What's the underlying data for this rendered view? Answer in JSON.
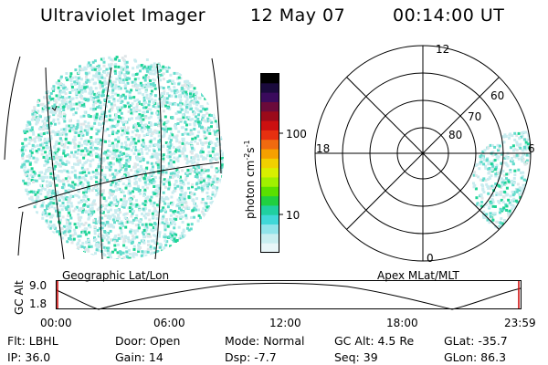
{
  "header": {
    "instrument": "Ultraviolet Imager",
    "date": "12 May 07",
    "time": "00:14:00 UT"
  },
  "colors": {
    "accent_red": "#cc0000",
    "speckle_low": "#c8ecef",
    "speckle_mid": "#63dccc",
    "speckle_high": "#1fd496"
  },
  "colorbar": {
    "units": "photon cm-2s-1",
    "ticks": [
      "100",
      "10"
    ],
    "colors": [
      "#000000",
      "#1a0a3c",
      "#3a0a5c",
      "#6b0a3a",
      "#9b0a1a",
      "#cc1010",
      "#e63010",
      "#f06a10",
      "#f5a000",
      "#f0d000",
      "#d8f000",
      "#a0f000",
      "#5ae000",
      "#20d040",
      "#20d0a0",
      "#40d8d8",
      "#90e4ea",
      "#c8eef0",
      "#e8f6f8"
    ]
  },
  "left_panel": {
    "caption": "Geographic Lat/Lon"
  },
  "polar_panel": {
    "caption": "Apex MLat/MLT",
    "mlt_labels": [
      "12",
      "18",
      "6",
      "0"
    ],
    "lat_labels": [
      "60",
      "70",
      "80"
    ]
  },
  "altitude_strip": {
    "ylabel": "GC Alt",
    "y_ticks": [
      "9.0",
      "1.8"
    ],
    "time_labels": [
      "00:00",
      "06:00",
      "12:00",
      "18:00",
      "23:59"
    ]
  },
  "info": {
    "filter": "Flt: LBHL",
    "door": "Door: Open",
    "mode": "Mode: Normal",
    "gc_alt": "GC Alt: 4.5 Re",
    "glat": "GLat: -35.7",
    "ip": "IP: 36.0",
    "gain": "Gain: 14",
    "dsp": "Dsp:   -7.7",
    "seq": "Seq: 39",
    "glon": "GLon:  86.3"
  }
}
